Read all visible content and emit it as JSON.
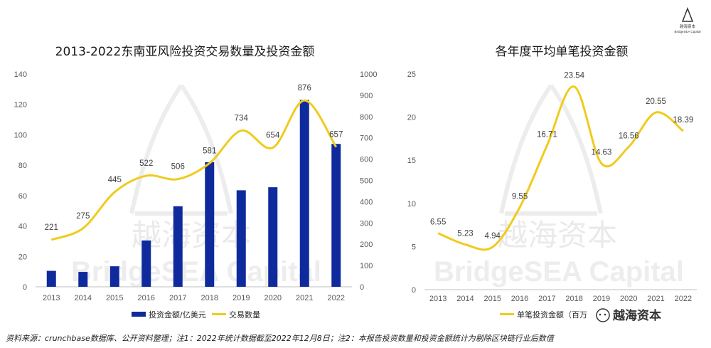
{
  "logo": {
    "cn": "越海资本",
    "en": "BridgeSEA Capital"
  },
  "watermark": {
    "cn": "越海资本",
    "en": "BridgeSEA Capital"
  },
  "brand_badge": "越海资本",
  "footnote": "资料来源：crunchbase数据库、公开资料整理；注1：2022年统计数据截至2022年12月8日；注2：本报告投资数量和投资金额统计为剔除区块链行业后数值",
  "colors": {
    "bar": "#0f2a9c",
    "line": "#f0cb1e"
  },
  "chart_data": [
    {
      "type": "bar+line",
      "title": "2013-2022东南亚风险投资交易数量及投资金额",
      "categories": [
        "2013",
        "2014",
        "2015",
        "2016",
        "2017",
        "2018",
        "2019",
        "2020",
        "2021",
        "2022"
      ],
      "series": [
        {
          "name": "投资金额/亿美元",
          "type": "bar",
          "axis": "left",
          "values": [
            10.5,
            9.8,
            13.5,
            30.5,
            53,
            82,
            63.5,
            65.5,
            123,
            94
          ]
        },
        {
          "name": "交易数量",
          "type": "line",
          "axis": "right",
          "values": [
            221,
            275,
            445,
            522,
            506,
            581,
            734,
            654,
            876,
            657
          ]
        }
      ],
      "left_axis": {
        "ticks": [
          "0",
          "20",
          "40",
          "60",
          "80",
          "100",
          "120",
          "140"
        ],
        "ylim": [
          0,
          140
        ]
      },
      "right_axis": {
        "ticks": [
          "0",
          "100",
          "200",
          "300",
          "400",
          "500",
          "600",
          "700",
          "800",
          "900",
          "1000"
        ],
        "ylim": [
          0,
          1000
        ]
      },
      "line_labels": [
        "221",
        "275",
        "445",
        "522",
        "506",
        "581",
        "734",
        "654",
        "876",
        "657"
      ],
      "legend_position": "bottom"
    },
    {
      "type": "line",
      "title": "各年度平均单笔投资金额",
      "categories": [
        "2013",
        "2014",
        "2015",
        "2016",
        "2017",
        "2018",
        "2019",
        "2020",
        "2021",
        "2022"
      ],
      "series": [
        {
          "name": "单笔投资金额（百万",
          "values": [
            6.55,
            5.23,
            4.94,
            9.55,
            16.71,
            23.54,
            14.63,
            16.56,
            20.55,
            18.39
          ]
        }
      ],
      "labels": [
        "6.55",
        "5.23",
        "4.94",
        "9.55",
        "16.71",
        "23.54",
        "14.63",
        "16.56",
        "20.55",
        "18.39"
      ],
      "axis": {
        "ticks": [
          "0",
          "5",
          "10",
          "15",
          "20",
          "25"
        ],
        "ylim": [
          0,
          25
        ]
      },
      "legend_position": "bottom"
    }
  ]
}
